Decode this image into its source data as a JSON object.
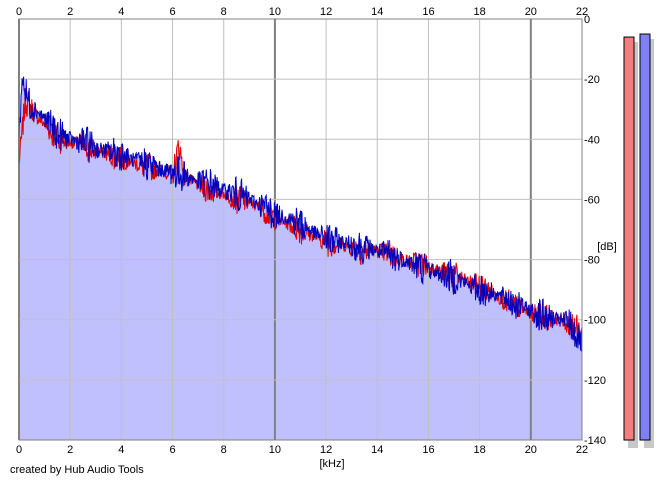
{
  "credit_text": "created by Hub Audio Tools",
  "chart_data": {
    "type": "line",
    "title": "",
    "xlabel": "[kHz]",
    "ylabel": "[dB]",
    "xlim": [
      0,
      22
    ],
    "ylim": [
      -140,
      0
    ],
    "x_ticks": [
      0,
      2,
      4,
      6,
      8,
      10,
      12,
      14,
      16,
      18,
      20,
      22
    ],
    "y_ticks": [
      0,
      -20,
      -40,
      -60,
      -80,
      -100,
      -120,
      -140
    ],
    "x_tick_labels": [
      "0",
      "2",
      "4",
      "6",
      "8",
      "10",
      "12",
      "14",
      "16",
      "18",
      "20",
      "22"
    ],
    "y_tick_labels": [
      "0",
      "-20",
      "-40",
      "-60",
      "-80",
      "-100",
      "-120",
      "-140"
    ],
    "grid": true,
    "colors": {
      "background": "#ffffff",
      "plot_background": "#ffffff",
      "fill": "#c0c0ff",
      "grid_light": "#c0c0c0",
      "grid_dark": "#808080",
      "red_series": "#e00000",
      "blue_series": "#0000c0",
      "meter_red": "#f08080",
      "meter_blue": "#8080f0",
      "meter_shadow": "#c8c8c8"
    },
    "series": [
      {
        "color": "#e00000",
        "x": [
          0.0,
          0.25,
          0.5,
          0.75,
          1.0,
          1.25,
          1.5,
          2.0,
          2.5,
          3.0,
          3.5,
          4.0,
          4.5,
          5.0,
          5.5,
          6.0,
          6.25,
          6.5,
          7.0,
          7.5,
          8.0,
          8.5,
          9.0,
          9.5,
          10.0,
          10.5,
          11.0,
          11.5,
          12.0,
          12.5,
          13.0,
          13.5,
          14.0,
          14.5,
          15.0,
          15.5,
          16.0,
          16.5,
          17.0,
          17.5,
          18.0,
          18.5,
          19.0,
          19.5,
          20.0,
          20.5,
          21.0,
          21.5,
          22.0
        ],
        "values": [
          -48,
          -27,
          -30,
          -33,
          -35,
          -38,
          -40,
          -41,
          -42,
          -44,
          -45,
          -46,
          -48,
          -49,
          -50,
          -52,
          -42,
          -53,
          -55,
          -57,
          -58,
          -60,
          -61,
          -63,
          -66,
          -68,
          -70,
          -72,
          -74,
          -75,
          -76,
          -77,
          -77,
          -78,
          -80,
          -81,
          -82,
          -84,
          -85,
          -87,
          -89,
          -91,
          -94,
          -96,
          -98,
          -99,
          -100,
          -101,
          -104
        ]
      },
      {
        "color": "#0000c0",
        "x": [
          0.0,
          0.15,
          0.25,
          0.5,
          0.75,
          1.0,
          1.25,
          1.5,
          2.0,
          2.5,
          3.0,
          3.5,
          4.0,
          4.5,
          5.0,
          5.5,
          6.0,
          6.5,
          7.0,
          7.5,
          8.0,
          8.5,
          9.0,
          9.5,
          10.0,
          10.5,
          11.0,
          11.5,
          12.0,
          12.5,
          13.0,
          13.5,
          14.0,
          14.5,
          15.0,
          15.5,
          16.0,
          16.5,
          17.0,
          17.5,
          18.0,
          18.5,
          19.0,
          19.5,
          20.0,
          20.5,
          21.0,
          21.5,
          22.0
        ],
        "values": [
          -38,
          -18,
          -25,
          -29,
          -31,
          -33,
          -35,
          -38,
          -40,
          -41,
          -43,
          -44,
          -45,
          -47,
          -48,
          -50,
          -51,
          -52,
          -54,
          -55,
          -57,
          -58,
          -60,
          -62,
          -65,
          -66,
          -68,
          -71,
          -73,
          -74,
          -75,
          -76,
          -77,
          -79,
          -80,
          -82,
          -83,
          -85,
          -86,
          -88,
          -90,
          -91,
          -93,
          -95,
          -97,
          -99,
          -100,
          -101,
          -108
        ]
      }
    ],
    "level_meters": [
      {
        "color": "#f08080",
        "level_db": -6
      },
      {
        "color": "#8080f0",
        "level_db": -5
      }
    ]
  }
}
